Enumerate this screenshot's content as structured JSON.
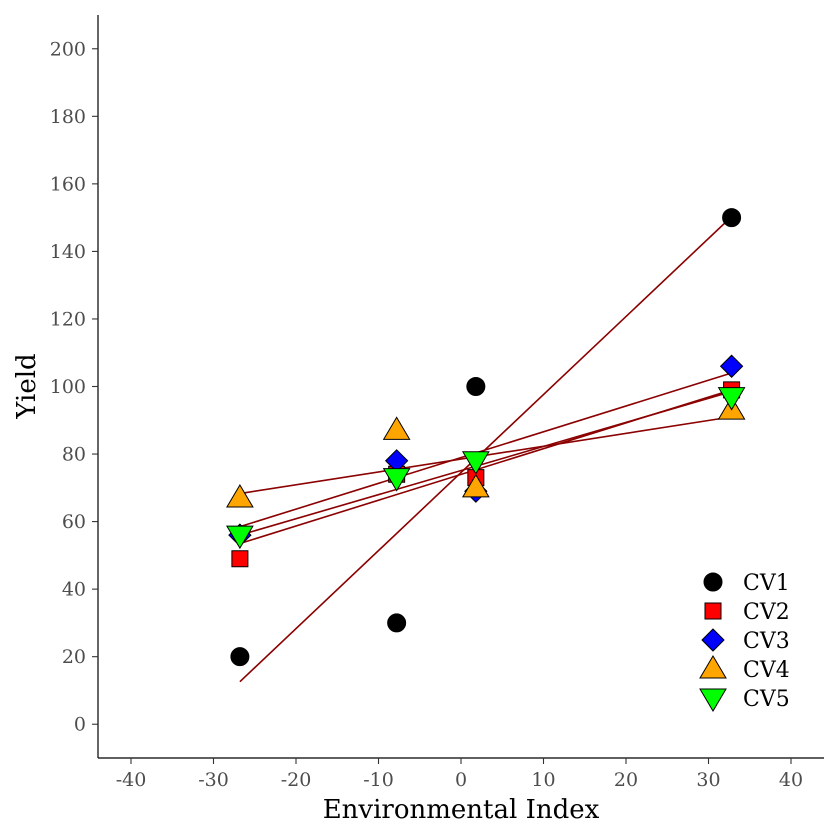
{
  "chart_data": {
    "type": "scatter",
    "title": "",
    "xlabel": "Environmental Index",
    "ylabel": "Yield",
    "xlim": [
      -44,
      44
    ],
    "ylim": [
      -10,
      210
    ],
    "xticks": [
      -40,
      -30,
      -20,
      -10,
      0,
      10,
      20,
      30,
      40
    ],
    "xtick_labels": [
      "-40",
      "-30",
      "-20",
      "-10",
      "0",
      "10",
      "20",
      "30",
      "40"
    ],
    "yticks": [
      0,
      20,
      40,
      60,
      80,
      100,
      120,
      140,
      160,
      180,
      200
    ],
    "ytick_labels": [
      "0",
      "20",
      "40",
      "60",
      "80",
      "100",
      "120",
      "140",
      "160",
      "180",
      "200"
    ],
    "grid": false,
    "legend_position": "bottom-right",
    "x": [
      -26.8,
      -7.8,
      1.8,
      32.8
    ],
    "regression_line_color": "#8b0000",
    "series": [
      {
        "name": "CV1",
        "marker": "circle",
        "fill": "#000000",
        "values": [
          20,
          30,
          100,
          150
        ],
        "fit": [
          {
            "x": -26.8,
            "y": 12.6
          },
          {
            "x": 32.8,
            "y": 150.3
          }
        ]
      },
      {
        "name": "CV2",
        "marker": "square",
        "fill": "#ff0000",
        "values": [
          49,
          74,
          73,
          99
        ],
        "fit": [
          {
            "x": -26.8,
            "y": 53.5
          },
          {
            "x": 32.8,
            "y": 99.0
          }
        ]
      },
      {
        "name": "CV3",
        "marker": "diamond",
        "fill": "#0000ff",
        "values": [
          56,
          78,
          69,
          106
        ],
        "fit": [
          {
            "x": -26.8,
            "y": 58.5
          },
          {
            "x": 32.8,
            "y": 104.0
          }
        ]
      },
      {
        "name": "CV4",
        "marker": "triangle-up",
        "fill": "#ffa500",
        "values": [
          67,
          87,
          70,
          93
        ],
        "fit": [
          {
            "x": -26.8,
            "y": 68.3
          },
          {
            "x": 32.8,
            "y": 91.0
          }
        ]
      },
      {
        "name": "CV5",
        "marker": "triangle-down",
        "fill": "#00ff00",
        "values": [
          56,
          73,
          78,
          97
        ],
        "fit": [
          {
            "x": -26.8,
            "y": 56.0
          },
          {
            "x": 32.8,
            "y": 98.5
          }
        ]
      }
    ]
  }
}
